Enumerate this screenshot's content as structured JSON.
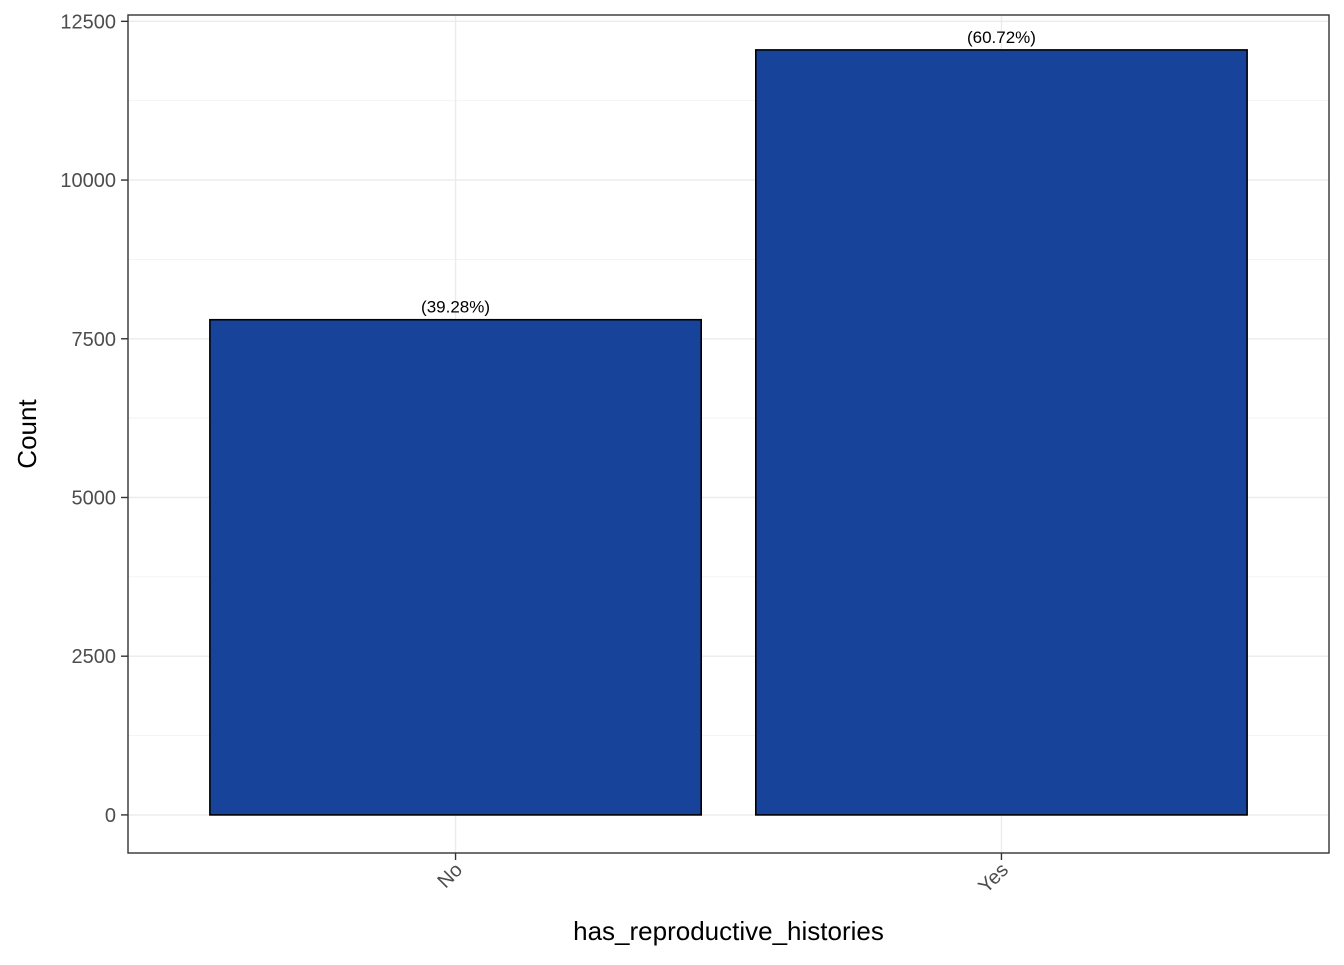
{
  "chart_data": {
    "type": "bar",
    "categories": [
      "No",
      "Yes"
    ],
    "values": [
      7800,
      12050
    ],
    "data_labels": [
      "(39.28%)",
      "(60.72%)"
    ],
    "title": "",
    "xlabel": "has_reproductive_histories",
    "ylabel": "Count",
    "ylim": [
      -600,
      12600
    ],
    "yticks": [
      0,
      2500,
      5000,
      7500,
      10000,
      12500
    ],
    "ytick_labels": [
      "0",
      "2500",
      "5000",
      "7500",
      "10000",
      "12500"
    ],
    "grid": true,
    "legend": "none",
    "colors": {
      "bar_fill": "#18439A",
      "bar_edge": "#000000",
      "panel_border": "#333333",
      "grid": "#EBEBEB",
      "tick_text": "#4D4D4D"
    }
  }
}
